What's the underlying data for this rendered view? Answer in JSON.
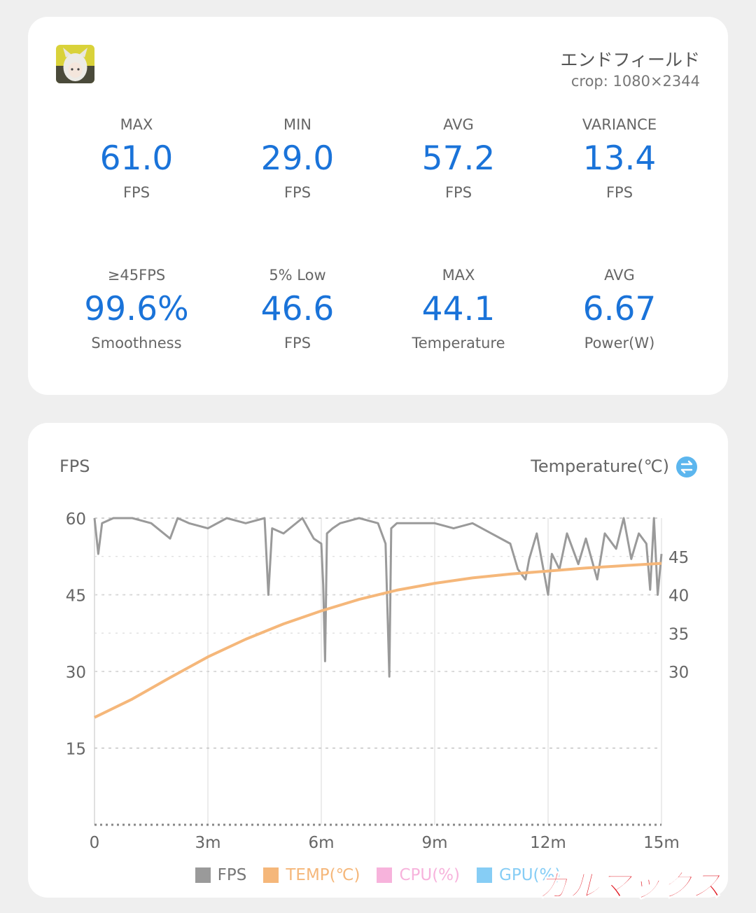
{
  "game": {
    "title": "エンドフィールド",
    "crop": "crop: 1080×2344"
  },
  "stats": [
    {
      "label": "MAX",
      "value": "61.0",
      "unit": "FPS"
    },
    {
      "label": "MIN",
      "value": "29.0",
      "unit": "FPS"
    },
    {
      "label": "AVG",
      "value": "57.2",
      "unit": "FPS"
    },
    {
      "label": "VARIANCE",
      "value": "13.4",
      "unit": "FPS"
    },
    {
      "label": "≥45FPS",
      "value": "99.6%",
      "unit": "Smoothness"
    },
    {
      "label": "5% Low",
      "value": "46.6",
      "unit": "FPS"
    },
    {
      "label": "MAX",
      "value": "44.1",
      "unit": "Temperature"
    },
    {
      "label": "AVG",
      "value": "6.67",
      "unit": "Power(W)"
    }
  ],
  "chart": {
    "left_title": "FPS",
    "right_title": "Temperature(℃)",
    "swap_icon": "swap-axis-icon"
  },
  "legend": [
    {
      "label": "FPS",
      "color": "#9a9a9a"
    },
    {
      "label": "TEMP(℃)",
      "color": "#f5b77a"
    },
    {
      "label": "CPU(%)",
      "color": "#f7b3dc"
    },
    {
      "label": "GPU(%)",
      "color": "#86cdf5"
    }
  ],
  "watermark": {
    "text": "ガルマックス",
    "color": "#e0141e"
  },
  "chart_data": {
    "type": "line",
    "x_tick_labels": [
      "0",
      "3m",
      "6m",
      "9m",
      "12m",
      "15m"
    ],
    "xlim": [
      0,
      15
    ],
    "left_axis": {
      "ticks": [
        "60",
        "45",
        "30",
        "15"
      ],
      "ylim": [
        0,
        60
      ]
    },
    "right_axis": {
      "ticks": [
        "45",
        "40",
        "35",
        "30"
      ],
      "ylim": [
        10,
        50
      ]
    },
    "grid": true,
    "legend_position": "bottom",
    "series": [
      {
        "name": "FPS",
        "axis": "left",
        "color": "#9a9a9a",
        "x": [
          0,
          0.1,
          0.2,
          0.5,
          1.0,
          1.5,
          2.0,
          2.2,
          2.5,
          3.0,
          3.5,
          4.0,
          4.5,
          4.6,
          4.7,
          5.0,
          5.5,
          5.8,
          6.0,
          6.05,
          6.1,
          6.15,
          6.3,
          6.5,
          7.0,
          7.5,
          7.7,
          7.8,
          7.85,
          8.0,
          8.5,
          9.0,
          9.5,
          10.0,
          10.5,
          11.0,
          11.2,
          11.4,
          11.5,
          11.7,
          12.0,
          12.1,
          12.3,
          12.5,
          12.8,
          13.0,
          13.3,
          13.5,
          13.8,
          14.0,
          14.2,
          14.4,
          14.6,
          14.7,
          14.8,
          14.9,
          15.0
        ],
        "y": [
          60,
          53,
          59,
          60,
          60,
          59,
          56,
          60,
          59,
          58,
          60,
          59,
          60,
          45,
          58,
          57,
          60,
          56,
          55,
          47,
          32,
          57,
          58,
          59,
          60,
          59,
          55,
          29,
          58,
          59,
          59,
          59,
          58,
          59,
          57,
          55,
          50,
          48,
          52,
          57,
          45,
          53,
          50,
          57,
          51,
          56,
          48,
          57,
          54,
          60,
          52,
          57,
          55,
          46,
          60,
          45,
          53
        ]
      },
      {
        "name": "TEMP(℃)",
        "axis": "right",
        "color": "#f5b77a",
        "x": [
          0,
          1,
          2,
          3,
          4,
          5,
          6,
          7,
          8,
          9,
          10,
          11,
          12,
          13,
          14,
          15
        ],
        "y": [
          24.0,
          26.4,
          29.2,
          31.9,
          34.2,
          36.2,
          37.9,
          39.4,
          40.6,
          41.5,
          42.2,
          42.7,
          43.1,
          43.5,
          43.8,
          44.1
        ]
      }
    ]
  }
}
